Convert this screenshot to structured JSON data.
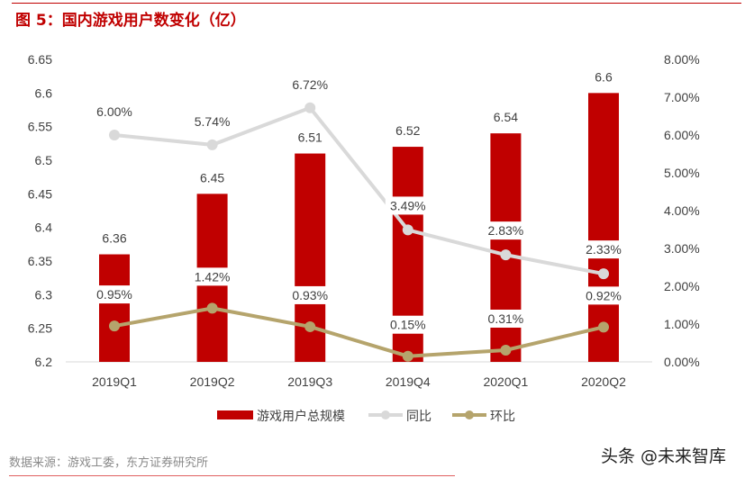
{
  "title": "图 5：国内游戏用户数变化（亿）",
  "source": "数据来源：游戏工委，东方证券研究所",
  "watermark": "头条 @未来智库",
  "chart_data": {
    "type": "bar+line",
    "categories": [
      "2019Q1",
      "2019Q2",
      "2019Q3",
      "2019Q4",
      "2020Q1",
      "2020Q2"
    ],
    "left_axis": {
      "ylim": [
        6.2,
        6.65
      ],
      "ticks": [
        "6.2",
        "6.25",
        "6.3",
        "6.35",
        "6.4",
        "6.45",
        "6.5",
        "6.55",
        "6.6",
        "6.65"
      ]
    },
    "right_axis": {
      "ylim": [
        0,
        8
      ],
      "ticks": [
        "0.00%",
        "1.00%",
        "2.00%",
        "3.00%",
        "4.00%",
        "5.00%",
        "6.00%",
        "7.00%",
        "8.00%"
      ]
    },
    "series": [
      {
        "name": "游戏用户总规模",
        "type": "bar",
        "axis": "left",
        "color": "#c00000",
        "values": [
          6.36,
          6.45,
          6.51,
          6.52,
          6.54,
          6.6
        ],
        "labels": [
          "6.36",
          "6.45",
          "6.51",
          "6.52",
          "6.54",
          "6.6"
        ]
      },
      {
        "name": "同比",
        "type": "line",
        "axis": "right",
        "color": "#d9d9d9",
        "values": [
          6.0,
          5.74,
          6.72,
          3.49,
          2.83,
          2.33
        ],
        "labels": [
          "6.00%",
          "5.74%",
          "6.72%",
          "3.49%",
          "2.83%",
          "2.33%"
        ]
      },
      {
        "name": "环比",
        "type": "line",
        "axis": "right",
        "color": "#b5a46c",
        "values": [
          0.95,
          1.42,
          0.93,
          0.15,
          0.31,
          0.92
        ],
        "labels": [
          "0.95%",
          "1.42%",
          "0.93%",
          "0.15%",
          "0.31%",
          "0.92%"
        ]
      }
    ],
    "grid": false,
    "legend": "bottom"
  }
}
